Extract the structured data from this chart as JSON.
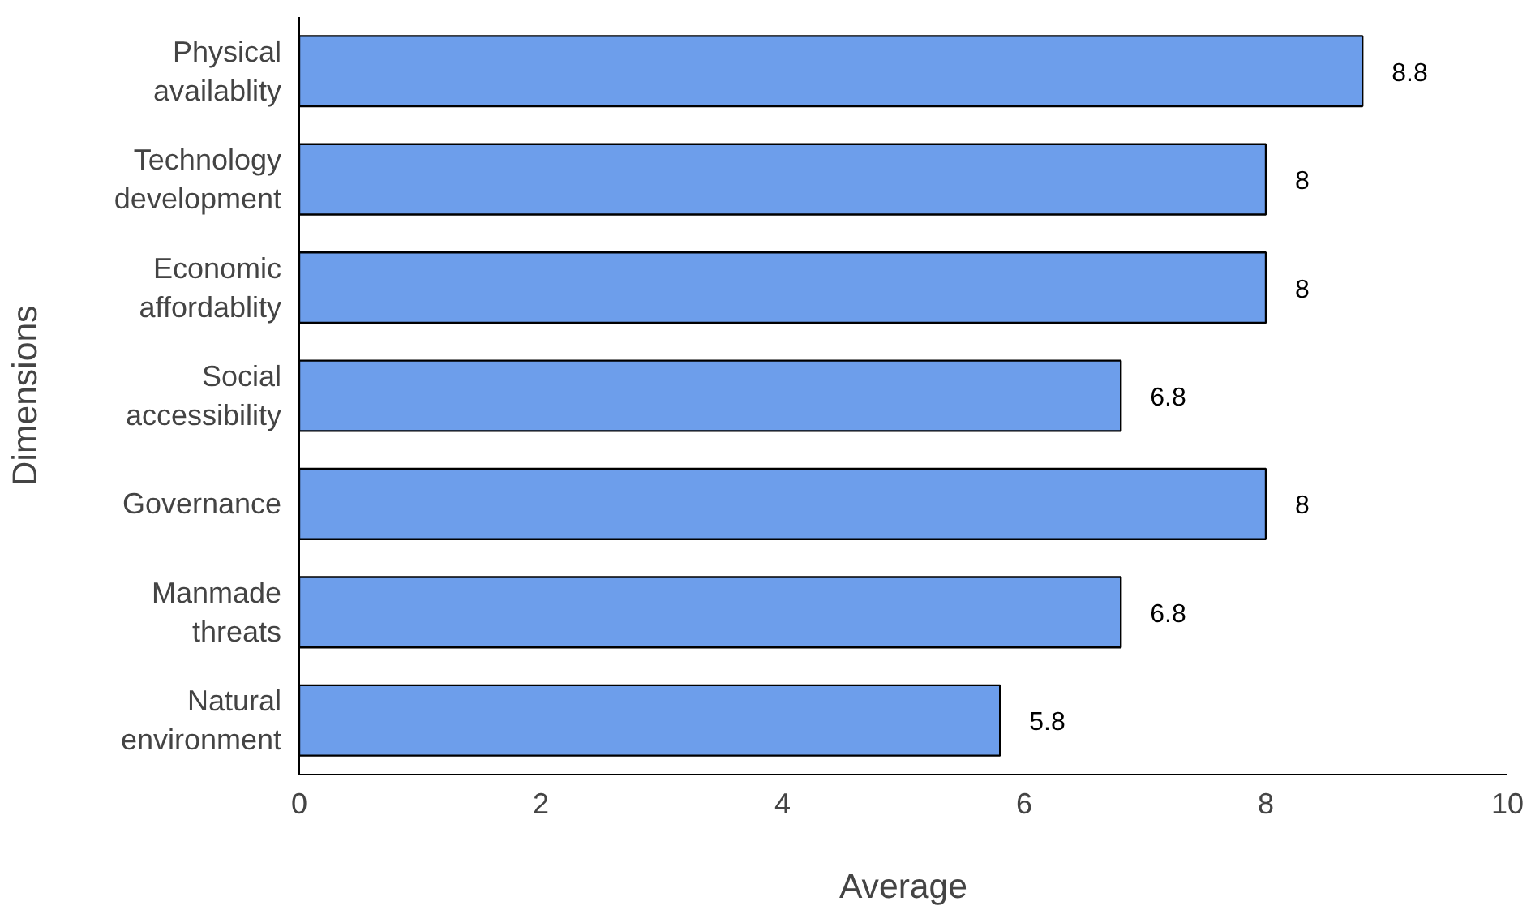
{
  "chart_data": {
    "type": "bar",
    "orientation": "horizontal",
    "xlabel": "Average",
    "ylabel": "Dimensions",
    "categories": [
      "Physical availablity",
      "Technology development",
      "Economic affordablity",
      "Social accessibility",
      "Governance",
      "Manmade threats",
      "Natural environment"
    ],
    "values": [
      8.8,
      8,
      8,
      6.8,
      8,
      6.8,
      5.8
    ],
    "color": "#6d9eeb",
    "xlim": [
      0,
      10
    ],
    "xticks": [
      0,
      2,
      4,
      6,
      8,
      10
    ],
    "data_labels": true,
    "grid": false
  }
}
